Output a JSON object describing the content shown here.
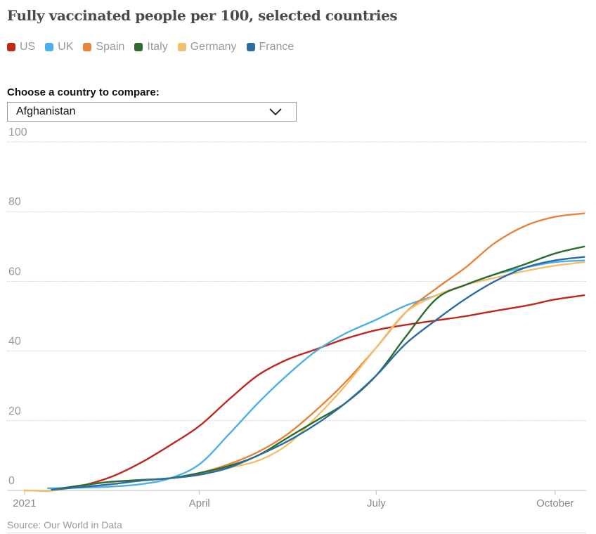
{
  "title": "Fully vaccinated people per 100, selected countries",
  "compare": {
    "label": "Choose a country to compare:",
    "selected": "Afghanistan"
  },
  "source": "Source: Our World in Data",
  "chart_data": {
    "type": "line",
    "title": "Fully vaccinated people per 100, selected countries",
    "xlabel": "",
    "ylabel": "",
    "ylim": [
      0,
      100
    ],
    "yticks": [
      0,
      20,
      40,
      60,
      80,
      100
    ],
    "xlim": [
      -9,
      289
    ],
    "xticks": [
      {
        "label": "2021",
        "day": 0
      },
      {
        "label": "April",
        "day": 90
      },
      {
        "label": "July",
        "day": 181
      },
      {
        "label": "October",
        "day": 273
      }
    ],
    "x_unit": "days since 1 Jan 2021",
    "grid": true,
    "legend_position": "top-left",
    "series": [
      {
        "name": "US",
        "color": "#c0281e",
        "x": [
          14,
          30,
          45,
          60,
          75,
          90,
          105,
          120,
          135,
          150,
          165,
          181,
          196,
          212,
          227,
          242,
          258,
          273,
          288
        ],
        "y": [
          0.3,
          1.5,
          4,
          8,
          13,
          18.5,
          26,
          33,
          37.5,
          40.5,
          43.5,
          46,
          47.5,
          48.8,
          50,
          51.5,
          53,
          54.8,
          56
        ]
      },
      {
        "name": "UK",
        "color": "#4eb0e6",
        "x": [
          12,
          30,
          45,
          60,
          75,
          90,
          105,
          120,
          135,
          150,
          165,
          181,
          196,
          212,
          227,
          242,
          258,
          273,
          288
        ],
        "y": [
          0.6,
          0.8,
          1.1,
          1.8,
          3.5,
          7.5,
          16,
          25,
          33,
          40,
          45,
          49,
          53,
          56,
          59,
          62,
          64,
          65.5,
          66
        ]
      },
      {
        "name": "Spain",
        "color": "#e8833a",
        "x": [
          0,
          15,
          30,
          45,
          60,
          75,
          90,
          105,
          120,
          135,
          150,
          165,
          181,
          196,
          212,
          227,
          242,
          258,
          273,
          288
        ],
        "y": [
          0,
          0,
          1.5,
          2.5,
          3,
          3.5,
          5,
          7.5,
          11,
          16,
          23,
          31,
          41,
          51,
          58,
          64,
          71,
          76,
          78.5,
          79.5
        ]
      },
      {
        "name": "Italy",
        "color": "#2f6b2f",
        "x": [
          14,
          30,
          45,
          60,
          75,
          90,
          105,
          120,
          135,
          150,
          165,
          181,
          196,
          212,
          227,
          242,
          258,
          273,
          288
        ],
        "y": [
          0.2,
          1.5,
          2.5,
          3,
          3.5,
          5,
          7,
          10,
          15,
          20,
          25,
          33,
          44,
          55,
          59,
          62,
          65,
          68,
          70
        ]
      },
      {
        "name": "Germany",
        "color": "#f2c06c",
        "x": [
          0,
          15,
          30,
          45,
          60,
          75,
          90,
          105,
          120,
          135,
          150,
          165,
          181,
          196,
          212,
          227,
          242,
          258,
          273,
          288
        ],
        "y": [
          0,
          0,
          1.5,
          2.5,
          3,
          3.5,
          4.5,
          6.5,
          8.5,
          13,
          21,
          30,
          41,
          51,
          56,
          59,
          61,
          63,
          64.5,
          65.5
        ]
      },
      {
        "name": "France",
        "color": "#2b6ca3",
        "x": [
          14,
          30,
          45,
          60,
          75,
          90,
          105,
          120,
          135,
          150,
          165,
          181,
          196,
          212,
          227,
          242,
          258,
          273,
          288
        ],
        "y": [
          0.2,
          1,
          1.8,
          2.8,
          3.5,
          4.5,
          6.5,
          10,
          14,
          19,
          25,
          33,
          42,
          49,
          55,
          60,
          64,
          66,
          67
        ]
      }
    ]
  }
}
